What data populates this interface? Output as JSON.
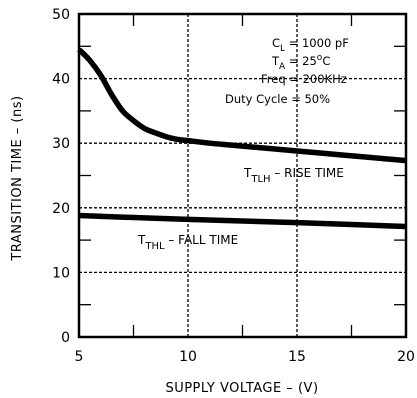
{
  "chart_data": {
    "type": "line",
    "xlabel": "SUPPLY VOLTAGE – (V)",
    "ylabel": "TRANSITION TIME – (ns)",
    "xlim": [
      5,
      20
    ],
    "ylim": [
      0,
      50
    ],
    "x_ticks": [
      "5",
      "10",
      "15",
      "20"
    ],
    "y_ticks": [
      "0",
      "10",
      "20",
      "30",
      "40",
      "50"
    ],
    "grid": true,
    "conditions": [
      "C_L = 1000 pF",
      "T_A = 25°C",
      "Freq = 200KHz",
      "Duty Cycle = 50%"
    ],
    "series": [
      {
        "name": "T TLH – RISE TIME",
        "x": [
          5,
          5.5,
          6,
          6.5,
          7,
          7.5,
          8,
          8.5,
          9,
          9.5,
          10,
          11,
          12,
          13,
          14,
          15,
          16,
          17,
          18,
          19,
          20
        ],
        "y": [
          44.5,
          42.8,
          40.5,
          37.5,
          35.0,
          33.5,
          32.3,
          31.6,
          31.0,
          30.6,
          30.4,
          30.0,
          29.7,
          29.4,
          29.1,
          28.8,
          28.5,
          28.2,
          27.9,
          27.6,
          27.3
        ]
      },
      {
        "name": "T THL – FALL TIME",
        "x": [
          5,
          10,
          15,
          20
        ],
        "y": [
          18.8,
          18.2,
          17.7,
          17.1
        ]
      }
    ]
  },
  "labels": {
    "cond_cl_main": "C",
    "cond_cl_sub": "L",
    "cond_cl_rest": " = 1000 pF",
    "cond_ta_main": "T",
    "cond_ta_sub": "A",
    "cond_ta_rest": " = 25",
    "cond_ta_deg": "o",
    "cond_ta_unit": "C",
    "cond_freq": "Freq = 200KHz",
    "cond_duty": "Duty Cycle = 50%",
    "rise_main": "T",
    "rise_sub": "TLH",
    "rise_rest": " – RISE TIME",
    "fall_main": "T",
    "fall_sub": "THL",
    "fall_rest": " – FALL TIME",
    "xlabel": "SUPPLY VOLTAGE – (V)",
    "ylabel": "TRANSITION TIME – (ns)"
  }
}
